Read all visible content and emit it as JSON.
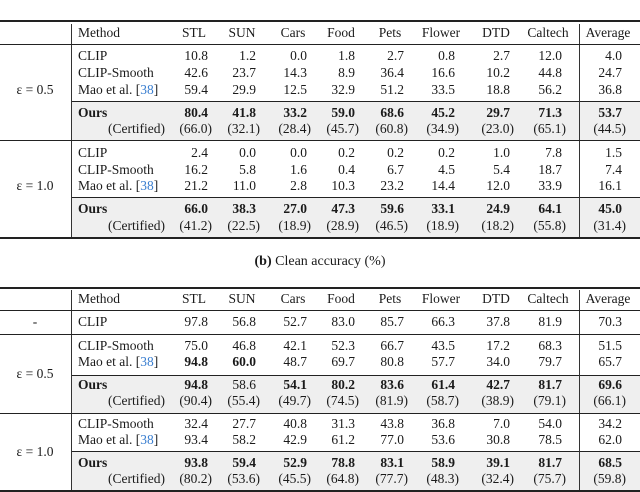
{
  "columns": [
    "Method",
    "STL",
    "SUN",
    "Cars",
    "Food",
    "Pets",
    "Flower",
    "DTD",
    "Caltech",
    "Average"
  ],
  "table_a": {
    "groups": [
      {
        "label": "ε = 0.5",
        "rows": [
          {
            "method": "CLIP",
            "values": [
              "10.8",
              "1.2",
              "0.0",
              "1.8",
              "2.7",
              "0.8",
              "2.7",
              "12.0",
              "4.0"
            ],
            "bold": []
          },
          {
            "method": "CLIP-Smooth",
            "values": [
              "42.6",
              "23.7",
              "14.3",
              "8.9",
              "36.4",
              "16.6",
              "10.2",
              "44.8",
              "24.7"
            ],
            "bold": []
          },
          {
            "method": "Mao et al. [",
            "cite": "38",
            "method_end": "]",
            "values": [
              "59.4",
              "29.9",
              "12.5",
              "32.9",
              "51.2",
              "33.5",
              "18.8",
              "56.2",
              "36.8"
            ],
            "bold": []
          }
        ],
        "ours": {
          "method": "Ours",
          "values": [
            "80.4",
            "41.8",
            "33.2",
            "59.0",
            "68.6",
            "45.2",
            "29.7",
            "71.3",
            "53.7"
          ],
          "bold": [
            0,
            1,
            2,
            3,
            4,
            5,
            6,
            7,
            8
          ]
        },
        "certified": {
          "method": "(Certified)",
          "values": [
            "(66.0)",
            "(32.1)",
            "(28.4)",
            "(45.7)",
            "(60.8)",
            "(34.9)",
            "(23.0)",
            "(65.1)",
            "(44.5)"
          ]
        }
      },
      {
        "label": "ε = 1.0",
        "rows": [
          {
            "method": "CLIP",
            "values": [
              "2.4",
              "0.0",
              "0.0",
              "0.2",
              "0.2",
              "0.2",
              "1.0",
              "7.8",
              "1.5"
            ],
            "bold": []
          },
          {
            "method": "CLIP-Smooth",
            "values": [
              "16.2",
              "5.8",
              "1.6",
              "0.4",
              "6.7",
              "4.5",
              "5.4",
              "18.7",
              "7.4"
            ],
            "bold": []
          },
          {
            "method": "Mao et al. [",
            "cite": "38",
            "method_end": "]",
            "values": [
              "21.2",
              "11.0",
              "2.8",
              "10.3",
              "23.2",
              "14.4",
              "12.0",
              "33.9",
              "16.1"
            ],
            "bold": []
          }
        ],
        "ours": {
          "method": "Ours",
          "values": [
            "66.0",
            "38.3",
            "27.0",
            "47.3",
            "59.6",
            "33.1",
            "24.9",
            "64.1",
            "45.0"
          ],
          "bold": [
            0,
            1,
            2,
            3,
            4,
            5,
            6,
            7,
            8
          ]
        },
        "certified": {
          "method": "(Certified)",
          "values": [
            "(41.2)",
            "(22.5)",
            "(18.9)",
            "(28.9)",
            "(46.5)",
            "(18.9)",
            "(18.2)",
            "(55.8)",
            "(31.4)"
          ]
        }
      }
    ]
  },
  "table_b": {
    "caption_label": "(b)",
    "caption_text": "Clean accuracy (%)",
    "baseline": {
      "label": "-",
      "method": "CLIP",
      "values": [
        "97.8",
        "56.8",
        "52.7",
        "83.0",
        "85.7",
        "66.3",
        "37.8",
        "81.9",
        "70.3"
      ]
    },
    "groups": [
      {
        "label": "ε = 0.5",
        "rows": [
          {
            "method": "CLIP-Smooth",
            "values": [
              "75.0",
              "46.8",
              "42.1",
              "52.3",
              "66.7",
              "43.5",
              "17.2",
              "68.3",
              "51.5"
            ],
            "bold": []
          },
          {
            "method": "Mao et al. [",
            "cite": "38",
            "method_end": "]",
            "values": [
              "94.8",
              "60.0",
              "48.7",
              "69.7",
              "80.8",
              "57.7",
              "34.0",
              "79.7",
              "65.7"
            ],
            "bold": [
              0,
              1
            ]
          }
        ],
        "ours": {
          "method": "Ours",
          "values": [
            "94.8",
            "58.6",
            "54.1",
            "80.2",
            "83.6",
            "61.4",
            "42.7",
            "81.7",
            "69.6"
          ],
          "bold": [
            0,
            2,
            3,
            4,
            5,
            6,
            7,
            8
          ]
        },
        "certified": {
          "method": "(Certified)",
          "values": [
            "(90.4)",
            "(55.4)",
            "(49.7)",
            "(74.5)",
            "(81.9)",
            "(58.7)",
            "(38.9)",
            "(79.1)",
            "(66.1)"
          ]
        }
      },
      {
        "label": "ε = 1.0",
        "rows": [
          {
            "method": "CLIP-Smooth",
            "values": [
              "32.4",
              "27.7",
              "40.8",
              "31.3",
              "43.8",
              "36.8",
              "7.0",
              "54.0",
              "34.2"
            ],
            "bold": []
          },
          {
            "method": "Mao et al. [",
            "cite": "38",
            "method_end": "]",
            "values": [
              "93.4",
              "58.2",
              "42.9",
              "61.2",
              "77.0",
              "53.6",
              "30.8",
              "78.5",
              "62.0"
            ],
            "bold": []
          }
        ],
        "ours": {
          "method": "Ours",
          "values": [
            "93.8",
            "59.4",
            "52.9",
            "78.8",
            "83.1",
            "58.9",
            "39.1",
            "81.7",
            "68.5"
          ],
          "bold": [
            0,
            1,
            2,
            3,
            4,
            5,
            6,
            7,
            8
          ]
        },
        "certified": {
          "method": "(Certified)",
          "values": [
            "(80.2)",
            "(53.6)",
            "(45.5)",
            "(64.8)",
            "(77.7)",
            "(48.3)",
            "(32.4)",
            "(75.7)",
            "(59.8)"
          ]
        }
      }
    ]
  },
  "colors": {
    "citation": "#3b7fd0",
    "highlight_row": "#efefef"
  }
}
